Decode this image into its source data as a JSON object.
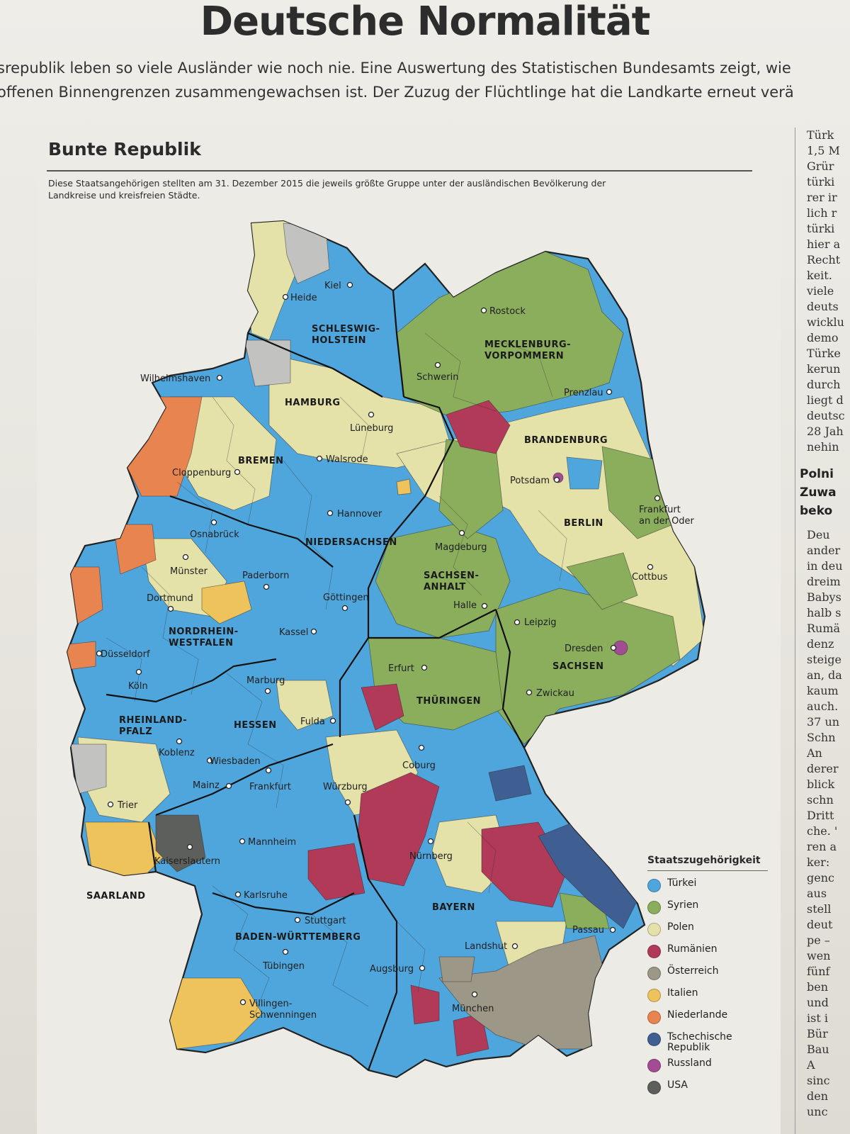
{
  "headline": "Deutsche Normalität",
  "lead_lines": [
    "srepublik leben so viele Ausländer wie noch nie. Eine Auswertung des Statistischen Bundesamts zeigt, wie",
    "offenen Binnengrenzen zusammengewachsen ist. Der Zuzug der Flüchtlinge hat die Landkarte erneut verä"
  ],
  "map": {
    "title": "Bunte Republik",
    "subtitle": "Diese Staatsangehörigen stellten am 31. Dezember 2015 die jeweils größte Gruppe unter der ausländischen Bevölkerung der Landkreise und kreisfreien Städte.",
    "states": [
      "SCHLESWIG-HOLSTEIN",
      "MECKLENBURG-VORPOMMERN",
      "HAMBURG",
      "BREMEN",
      "BRANDENBURG",
      "BERLIN",
      "NIEDERSACHSEN",
      "SACHSEN-ANHALT",
      "NORDRHEIN-WESTFALEN",
      "SACHSEN",
      "THÜRINGEN",
      "HESSEN",
      "RHEINLAND-PFALZ",
      "SAARLAND",
      "BAYERN",
      "BADEN-WÜRTTEMBERG"
    ],
    "cities": [
      "Kiel",
      "Heide",
      "Rostock",
      "Schwerin",
      "Prenzlau",
      "Wilhelmshaven",
      "Lüneburg",
      "Walsrode",
      "Cloppenburg",
      "Potsdam",
      "Frankfurt an der Oder",
      "Hannover",
      "Osnabrück",
      "Magdeburg",
      "Münster",
      "Paderborn",
      "Cottbus",
      "Dortmund",
      "Göttingen",
      "Halle",
      "Leipzig",
      "Kassel",
      "Düsseldorf",
      "Dresden",
      "Erfurt",
      "Köln",
      "Marburg",
      "Zwickau",
      "Fulda",
      "Koblenz",
      "Coburg",
      "Wiesbaden",
      "Mainz",
      "Frankfurt",
      "Würzburg",
      "Trier",
      "Mannheim",
      "Nürnberg",
      "Kaiserslautern",
      "Karlsruhe",
      "Stuttgart",
      "Passau",
      "Landshut",
      "Tübingen",
      "Augsburg",
      "Villingen-Schwenningen",
      "München"
    ],
    "legend": {
      "title": "Staatszugehörigkeit",
      "items": [
        {
          "label": "Türkei",
          "color": "#4fa6dc"
        },
        {
          "label": "Syrien",
          "color": "#8aae5c"
        },
        {
          "label": "Polen",
          "color": "#e4e2a8"
        },
        {
          "label": "Rumänien",
          "color": "#b03a58"
        },
        {
          "label": "Österreich",
          "color": "#9d9787"
        },
        {
          "label": "Italien",
          "color": "#eec35c"
        },
        {
          "label": "Niederlande",
          "color": "#e8844f"
        },
        {
          "label": "Tschechische Republik",
          "color": "#3f5f92"
        },
        {
          "label": "Russland",
          "color": "#a24d93"
        },
        {
          "label": "USA",
          "color": "#5d5f5c"
        }
      ]
    }
  },
  "side_column": {
    "lines_top": [
      "Türk",
      "1,5 M",
      "Grür",
      "türki",
      "rer ir",
      "lich r",
      "türki",
      "hier a",
      "Recht",
      "keit.",
      "viele",
      "deuts",
      "wicklu",
      "demo",
      "Türke",
      "kerun",
      "durch",
      "liegt d",
      "deutsc",
      "28 Jah",
      "nehin"
    ],
    "headline_lines": [
      "Polni",
      "Zuwa",
      "beko"
    ],
    "lines_bottom": [
      "Deu",
      "ander",
      "in deu",
      "dreim",
      "Babys",
      "halb s",
      "Rumä",
      "denz",
      "steige",
      "an, da",
      "kaum",
      "auch.",
      "37 un",
      "Schn",
      "An",
      "derer",
      "blick",
      "schn",
      "Dritt",
      "che. '",
      "ren a",
      "ker:",
      "genc",
      "aus",
      "stell",
      "deut",
      "pe –",
      "wen",
      "fünf",
      "ben",
      "und",
      "ist i",
      "Bür",
      "Bau",
      "A",
      "sinc",
      "den",
      "unc"
    ]
  }
}
